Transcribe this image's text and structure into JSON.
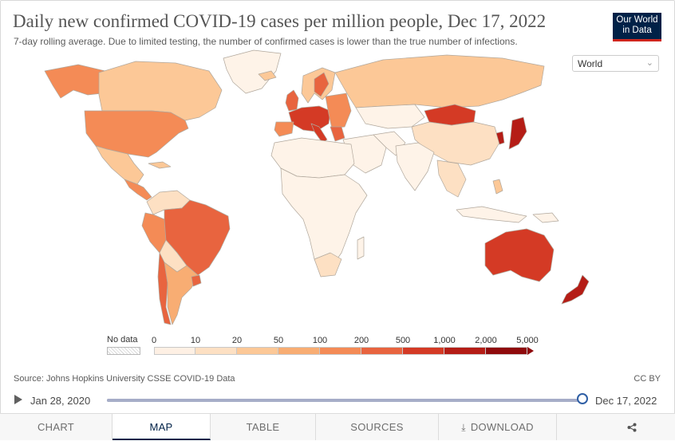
{
  "header": {
    "title": "Daily new confirmed COVID-19 cases per million people, Dec 17, 2022",
    "subtitle": "7-day rolling average. Due to limited testing, the number of confirmed cases is lower than the true number of infections.",
    "logo_line1": "Our World",
    "logo_line2": "in Data",
    "region_select": "World"
  },
  "colors": {
    "nodata": "#f3f3f3",
    "bins": [
      "#fef0e4",
      "#fde0c3",
      "#fcc897",
      "#f8ad73",
      "#f48b56",
      "#e8643f",
      "#d43a25",
      "#b51d16",
      "#8f0a0c"
    ],
    "land_default": "#fef3e8",
    "border": "#aaaaaa"
  },
  "legend": {
    "nodata_label": "No data",
    "ticks": [
      "0",
      "10",
      "20",
      "50",
      "100",
      "200",
      "500",
      "1,000",
      "2,000",
      "5,000"
    ]
  },
  "footer": {
    "source": "Source: Johns Hopkins University CSSE COVID-19 Data",
    "license": "CC BY"
  },
  "timeline": {
    "start": "Jan 28, 2020",
    "end": "Dec 17, 2022",
    "progress": 1.0
  },
  "tabs": [
    {
      "label": "CHART",
      "active": false
    },
    {
      "label": "MAP",
      "active": true
    },
    {
      "label": "TABLE",
      "active": false
    },
    {
      "label": "SOURCES",
      "active": false
    },
    {
      "label": "DOWNLOAD",
      "active": false,
      "icon": "download-icon"
    }
  ],
  "share_icon": "share-icon"
}
